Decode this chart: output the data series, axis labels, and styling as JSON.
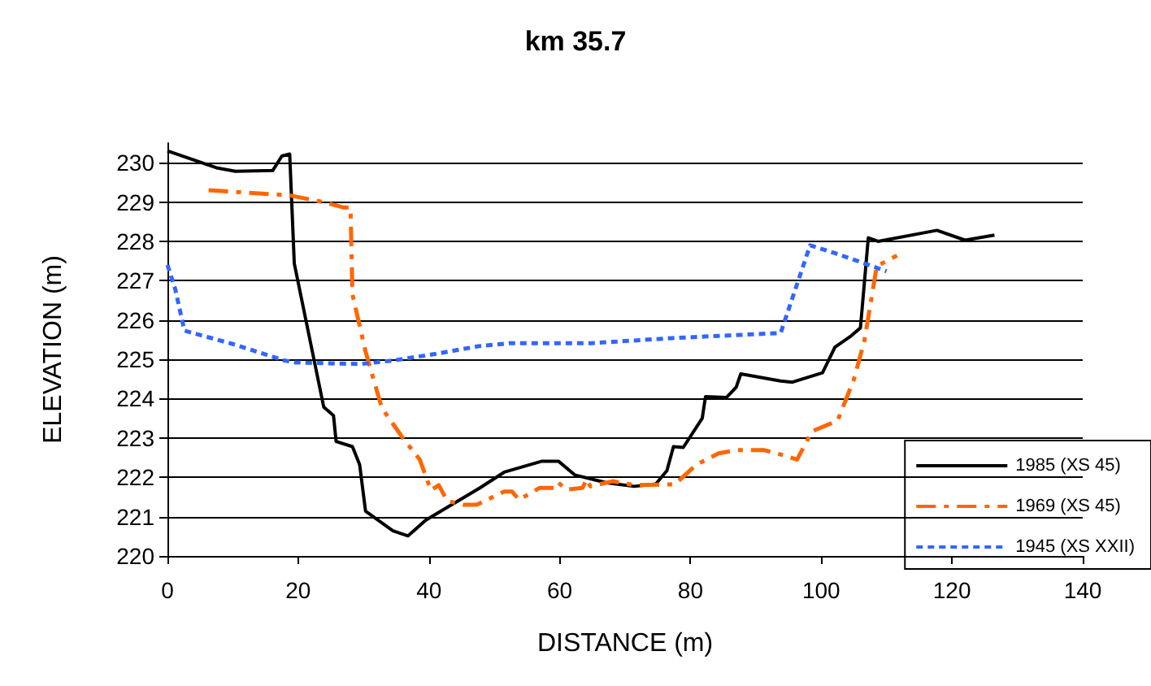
{
  "chart_data": {
    "type": "line",
    "title": "km 35.7",
    "xlabel": "DISTANCE (m)",
    "ylabel": "ELEVATION (m)",
    "xlim": [
      0,
      140
    ],
    "xticks": [
      0,
      20,
      40,
      60,
      80,
      100,
      120,
      140
    ],
    "ylim": [
      220,
      230.5
    ],
    "yticks": [
      220,
      221,
      222,
      223,
      224,
      225,
      226,
      227,
      228,
      229,
      230
    ],
    "grid": "y",
    "legend": "bottom right",
    "marker": "none",
    "series": [
      {
        "name": "1985 (XS 45)",
        "color": "#000000",
        "line_style": "solid",
        "x": [
          0,
          7.5,
          10.4,
          16.1,
          17.5,
          18.7,
          19.4,
          23.9,
          25.4,
          25.8,
          28.3,
          29.4,
          30.3,
          34.5,
          36.8,
          39.5,
          47.8,
          51.5,
          57.3,
          59.8,
          62.3,
          67.2,
          71.4,
          74.7,
          76.4,
          77.4,
          78.9,
          81.8,
          82.3,
          85.5,
          87,
          87.7,
          93.8,
          95.6,
          100.2,
          102.1,
          104.6,
          106,
          107.2,
          108.7,
          117.7,
          122,
          126.5
        ],
        "values": [
          230.3,
          229.87,
          229.78,
          229.8,
          230.17,
          230.22,
          227.44,
          223.79,
          223.57,
          222.91,
          222.78,
          222.32,
          221.14,
          220.64,
          220.51,
          220.91,
          221.73,
          222.13,
          222.41,
          222.41,
          222.06,
          221.86,
          221.77,
          221.83,
          222.17,
          222.78,
          222.76,
          223.5,
          224.05,
          224.03,
          224.29,
          224.63,
          224.45,
          224.42,
          224.66,
          225.31,
          225.6,
          225.8,
          228.09,
          228,
          228.28,
          228.03,
          228.16
        ]
      },
      {
        "name": "1969 (XS 45)",
        "color": "#ff6600",
        "line_style": "dashed",
        "x": [
          6.3,
          18.7,
          24.1,
          27,
          28,
          28.3,
          30.3,
          32.8,
          36.1,
          38.6,
          40.3,
          41.5,
          42.8,
          45.3,
          47.3,
          51.5,
          52.7,
          53.8,
          56.9,
          59.4,
          59.8,
          61,
          63.5,
          64.1,
          64.7,
          68.1,
          71.4,
          77.6,
          80.9,
          84.3,
          87.1,
          91.3,
          93.8,
          96.3,
          98.6,
          102.5,
          105,
          106.6,
          108.5,
          111.6
        ],
        "values": [
          229.3,
          229.17,
          228.99,
          228.86,
          228.86,
          226.65,
          225.2,
          223.76,
          222.98,
          222.45,
          221.67,
          221.8,
          221.4,
          221.3,
          221.3,
          221.64,
          221.64,
          221.43,
          221.73,
          221.73,
          221.86,
          221.69,
          221.73,
          221.95,
          221.77,
          221.9,
          221.8,
          221.82,
          222.32,
          222.61,
          222.69,
          222.69,
          222.58,
          222.45,
          223.17,
          223.44,
          224.49,
          225.47,
          227.37,
          227.64
        ]
      },
      {
        "name": "1945 (XS XXII)",
        "color": "#3366ff",
        "line_style": "dotted",
        "x": [
          0,
          1.2,
          2.6,
          10.4,
          17.9,
          19.6,
          29.5,
          34.5,
          41.1,
          47.8,
          52.3,
          64.8,
          77.2,
          93.8,
          98.3,
          102.1,
          106.6,
          110
        ],
        "values": [
          227.4,
          226.78,
          225.73,
          225.37,
          224.97,
          224.92,
          224.88,
          224.97,
          225.14,
          225.34,
          225.41,
          225.41,
          225.54,
          225.67,
          227.9,
          227.7,
          227.44,
          227.24
        ]
      }
    ]
  }
}
